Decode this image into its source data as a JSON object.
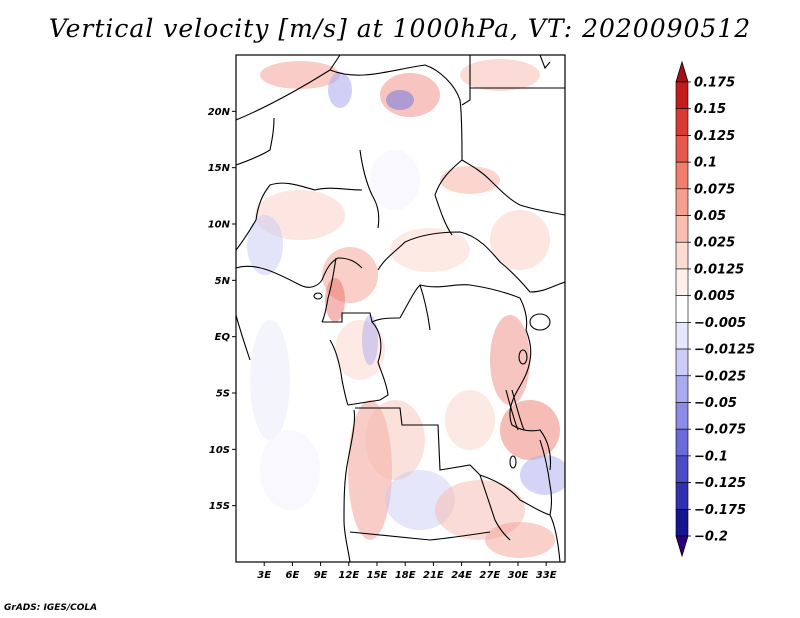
{
  "title": "Vertical velocity [m/s] at 1000hPa, VT: 2020090512",
  "credit": "GrADS: IGES/COLA",
  "map": {
    "lat_ticks": [
      "20N",
      "15N",
      "10N",
      "5N",
      "EQ",
      "5S",
      "10S",
      "15S"
    ],
    "lat_values": [
      20,
      15,
      10,
      5,
      0,
      -5,
      -10,
      -15
    ],
    "lon_ticks": [
      "3E",
      "6E",
      "9E",
      "12E",
      "15E",
      "18E",
      "21E",
      "24E",
      "27E",
      "30E",
      "33E"
    ],
    "lon_values": [
      3,
      6,
      9,
      12,
      15,
      18,
      21,
      24,
      27,
      30,
      33
    ],
    "lon_range": [
      0,
      35
    ],
    "lat_range": [
      -20,
      25
    ]
  },
  "colorbar": {
    "labels": [
      "0.175",
      "0.15",
      "0.125",
      "0.1",
      "0.075",
      "0.05",
      "0.025",
      "0.0125",
      "0.005",
      "−0.005",
      "−0.0125",
      "−0.025",
      "−0.05",
      "−0.075",
      "−0.1",
      "−0.125",
      "−0.175",
      "−0.2"
    ],
    "colors": [
      "#a50f15",
      "#c41b1b",
      "#d93a32",
      "#e65a4e",
      "#ef7e6d",
      "#f5a08f",
      "#f9c0b2",
      "#fcdcd2",
      "#fff0eb",
      "#ffffff",
      "#e6e6ff",
      "#ccccf7",
      "#aaaaf0",
      "#8c8ce6",
      "#6a6ad8",
      "#4c4cc8",
      "#3030b0",
      "#15158f",
      "#2a0080"
    ]
  }
}
